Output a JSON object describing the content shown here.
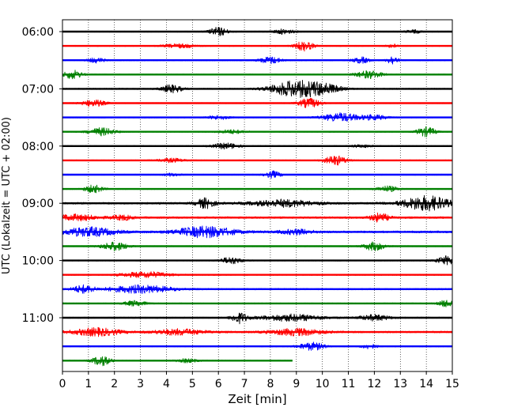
{
  "chart_data": {
    "type": "line",
    "title": "",
    "xlabel": "Zeit  [min]",
    "ylabel": "UTC (Lokalzeit = UTC + 02:00)",
    "xlim": [
      0,
      15
    ],
    "x_ticks": [
      "0",
      "1",
      "2",
      "3",
      "4",
      "5",
      "6",
      "7",
      "8",
      "9",
      "10",
      "11",
      "12",
      "13",
      "14",
      "15"
    ],
    "y_ticks": [
      "06:00",
      "07:00",
      "08:00",
      "09:00",
      "10:00",
      "11:00"
    ],
    "y_tick_trace_index": [
      0,
      4,
      8,
      12,
      16,
      20
    ],
    "trace_interval_minutes": 15,
    "start_time": "06:00",
    "grid": "vertical dotted at each minute",
    "color_cycle": [
      "#000000",
      "#ff0000",
      "#0000ff",
      "#008000"
    ],
    "traces": [
      {
        "color": "#000000",
        "end_min": 15,
        "base": 0.12,
        "events": [
          {
            "t": 6.0,
            "amp": 0.9,
            "w": 0.35
          },
          {
            "t": 8.5,
            "amp": 0.5,
            "w": 0.4
          },
          {
            "t": 13.5,
            "amp": 0.35,
            "w": 0.3
          }
        ]
      },
      {
        "color": "#ff0000",
        "end_min": 15,
        "base": 0.12,
        "events": [
          {
            "t": 4.5,
            "amp": 0.4,
            "w": 0.6
          },
          {
            "t": 9.3,
            "amp": 1.0,
            "w": 0.35
          },
          {
            "t": 12.7,
            "amp": 0.4,
            "w": 0.2
          }
        ]
      },
      {
        "color": "#0000ff",
        "end_min": 15,
        "base": 0.14,
        "events": [
          {
            "t": 1.3,
            "amp": 0.5,
            "w": 0.3
          },
          {
            "t": 8.0,
            "amp": 0.7,
            "w": 0.4
          },
          {
            "t": 11.5,
            "amp": 0.6,
            "w": 0.3
          },
          {
            "t": 12.7,
            "amp": 0.9,
            "w": 0.2
          }
        ]
      },
      {
        "color": "#008000",
        "end_min": 15,
        "base": 0.12,
        "events": [
          {
            "t": 0.4,
            "amp": 0.9,
            "w": 0.35
          },
          {
            "t": 11.8,
            "amp": 0.8,
            "w": 0.5
          }
        ]
      },
      {
        "color": "#000000",
        "end_min": 15,
        "base": 0.14,
        "events": [
          {
            "t": 4.2,
            "amp": 0.8,
            "w": 0.4
          },
          {
            "t": 8.9,
            "amp": 1.6,
            "w": 0.9
          },
          {
            "t": 10.0,
            "amp": 1.0,
            "w": 0.7
          }
        ]
      },
      {
        "color": "#ff0000",
        "end_min": 15,
        "base": 0.12,
        "events": [
          {
            "t": 1.2,
            "amp": 0.7,
            "w": 0.45
          },
          {
            "t": 9.5,
            "amp": 1.0,
            "w": 0.4
          }
        ]
      },
      {
        "color": "#0000ff",
        "end_min": 15,
        "base": 0.12,
        "events": [
          {
            "t": 6.0,
            "amp": 0.4,
            "w": 0.4
          },
          {
            "t": 10.7,
            "amp": 0.9,
            "w": 0.7
          },
          {
            "t": 12.0,
            "amp": 0.5,
            "w": 0.5
          }
        ]
      },
      {
        "color": "#008000",
        "end_min": 15,
        "base": 0.12,
        "events": [
          {
            "t": 1.5,
            "amp": 0.8,
            "w": 0.5
          },
          {
            "t": 6.5,
            "amp": 0.4,
            "w": 0.5
          },
          {
            "t": 14.0,
            "amp": 1.0,
            "w": 0.35
          }
        ]
      },
      {
        "color": "#000000",
        "end_min": 15,
        "base": 0.12,
        "events": [
          {
            "t": 6.3,
            "amp": 0.6,
            "w": 0.5
          },
          {
            "t": 11.5,
            "amp": 0.3,
            "w": 0.4
          }
        ]
      },
      {
        "color": "#ff0000",
        "end_min": 15,
        "base": 0.12,
        "events": [
          {
            "t": 4.2,
            "amp": 0.4,
            "w": 0.5
          },
          {
            "t": 10.5,
            "amp": 1.0,
            "w": 0.4
          }
        ]
      },
      {
        "color": "#0000ff",
        "end_min": 15,
        "base": 0.12,
        "events": [
          {
            "t": 4.2,
            "amp": 0.3,
            "w": 0.3
          },
          {
            "t": 8.1,
            "amp": 0.7,
            "w": 0.3
          }
        ]
      },
      {
        "color": "#008000",
        "end_min": 15,
        "base": 0.12,
        "events": [
          {
            "t": 1.2,
            "amp": 0.8,
            "w": 0.35
          },
          {
            "t": 12.5,
            "amp": 0.6,
            "w": 0.4
          }
        ]
      },
      {
        "color": "#000000",
        "end_min": 15,
        "base": 0.2,
        "events": [
          {
            "t": 5.5,
            "amp": 1.0,
            "w": 0.35
          },
          {
            "t": 8.5,
            "amp": 0.7,
            "w": 1.2
          },
          {
            "t": 14.0,
            "amp": 1.5,
            "w": 0.9
          }
        ]
      },
      {
        "color": "#ff0000",
        "end_min": 15,
        "base": 0.2,
        "events": [
          {
            "t": 0.5,
            "amp": 0.6,
            "w": 0.8
          },
          {
            "t": 2.3,
            "amp": 0.5,
            "w": 0.4
          },
          {
            "t": 12.2,
            "amp": 0.9,
            "w": 0.35
          }
        ]
      },
      {
        "color": "#0000ff",
        "end_min": 15,
        "base": 0.22,
        "events": [
          {
            "t": 1.0,
            "amp": 0.9,
            "w": 1.0
          },
          {
            "t": 5.5,
            "amp": 1.1,
            "w": 1.1
          },
          {
            "t": 9.0,
            "amp": 0.5,
            "w": 0.6
          }
        ]
      },
      {
        "color": "#008000",
        "end_min": 15,
        "base": 0.12,
        "events": [
          {
            "t": 2.0,
            "amp": 0.9,
            "w": 0.5
          },
          {
            "t": 12.0,
            "amp": 0.9,
            "w": 0.4
          }
        ]
      },
      {
        "color": "#000000",
        "end_min": 15,
        "base": 0.12,
        "events": [
          {
            "t": 6.5,
            "amp": 0.7,
            "w": 0.4
          },
          {
            "t": 14.8,
            "amp": 0.9,
            "w": 0.4
          }
        ]
      },
      {
        "color": "#ff0000",
        "end_min": 15,
        "base": 0.14,
        "events": [
          {
            "t": 3.2,
            "amp": 0.6,
            "w": 0.9
          }
        ]
      },
      {
        "color": "#0000ff",
        "end_min": 15,
        "base": 0.16,
        "events": [
          {
            "t": 0.8,
            "amp": 0.8,
            "w": 0.4
          },
          {
            "t": 3.0,
            "amp": 0.8,
            "w": 1.2
          }
        ]
      },
      {
        "color": "#008000",
        "end_min": 15,
        "base": 0.12,
        "events": [
          {
            "t": 2.8,
            "amp": 0.6,
            "w": 0.4
          },
          {
            "t": 14.8,
            "amp": 0.8,
            "w": 0.3
          }
        ]
      },
      {
        "color": "#000000",
        "end_min": 15,
        "base": 0.14,
        "events": [
          {
            "t": 6.8,
            "amp": 1.1,
            "w": 0.3
          },
          {
            "t": 8.8,
            "amp": 0.7,
            "w": 1.2
          },
          {
            "t": 12.0,
            "amp": 0.6,
            "w": 0.6
          }
        ]
      },
      {
        "color": "#ff0000",
        "end_min": 15,
        "base": 0.18,
        "events": [
          {
            "t": 1.3,
            "amp": 0.8,
            "w": 0.9
          },
          {
            "t": 4.5,
            "amp": 0.6,
            "w": 1.0
          },
          {
            "t": 9.0,
            "amp": 0.7,
            "w": 1.0
          }
        ]
      },
      {
        "color": "#0000ff",
        "end_min": 15,
        "base": 0.12,
        "events": [
          {
            "t": 9.6,
            "amp": 0.8,
            "w": 0.5
          },
          {
            "t": 11.8,
            "amp": 0.5,
            "w": 0.3
          }
        ]
      },
      {
        "color": "#008000",
        "end_min": 8.85,
        "base": 0.12,
        "events": [
          {
            "t": 1.5,
            "amp": 1.0,
            "w": 0.35
          },
          {
            "t": 4.8,
            "amp": 0.4,
            "w": 0.4
          }
        ]
      }
    ]
  }
}
